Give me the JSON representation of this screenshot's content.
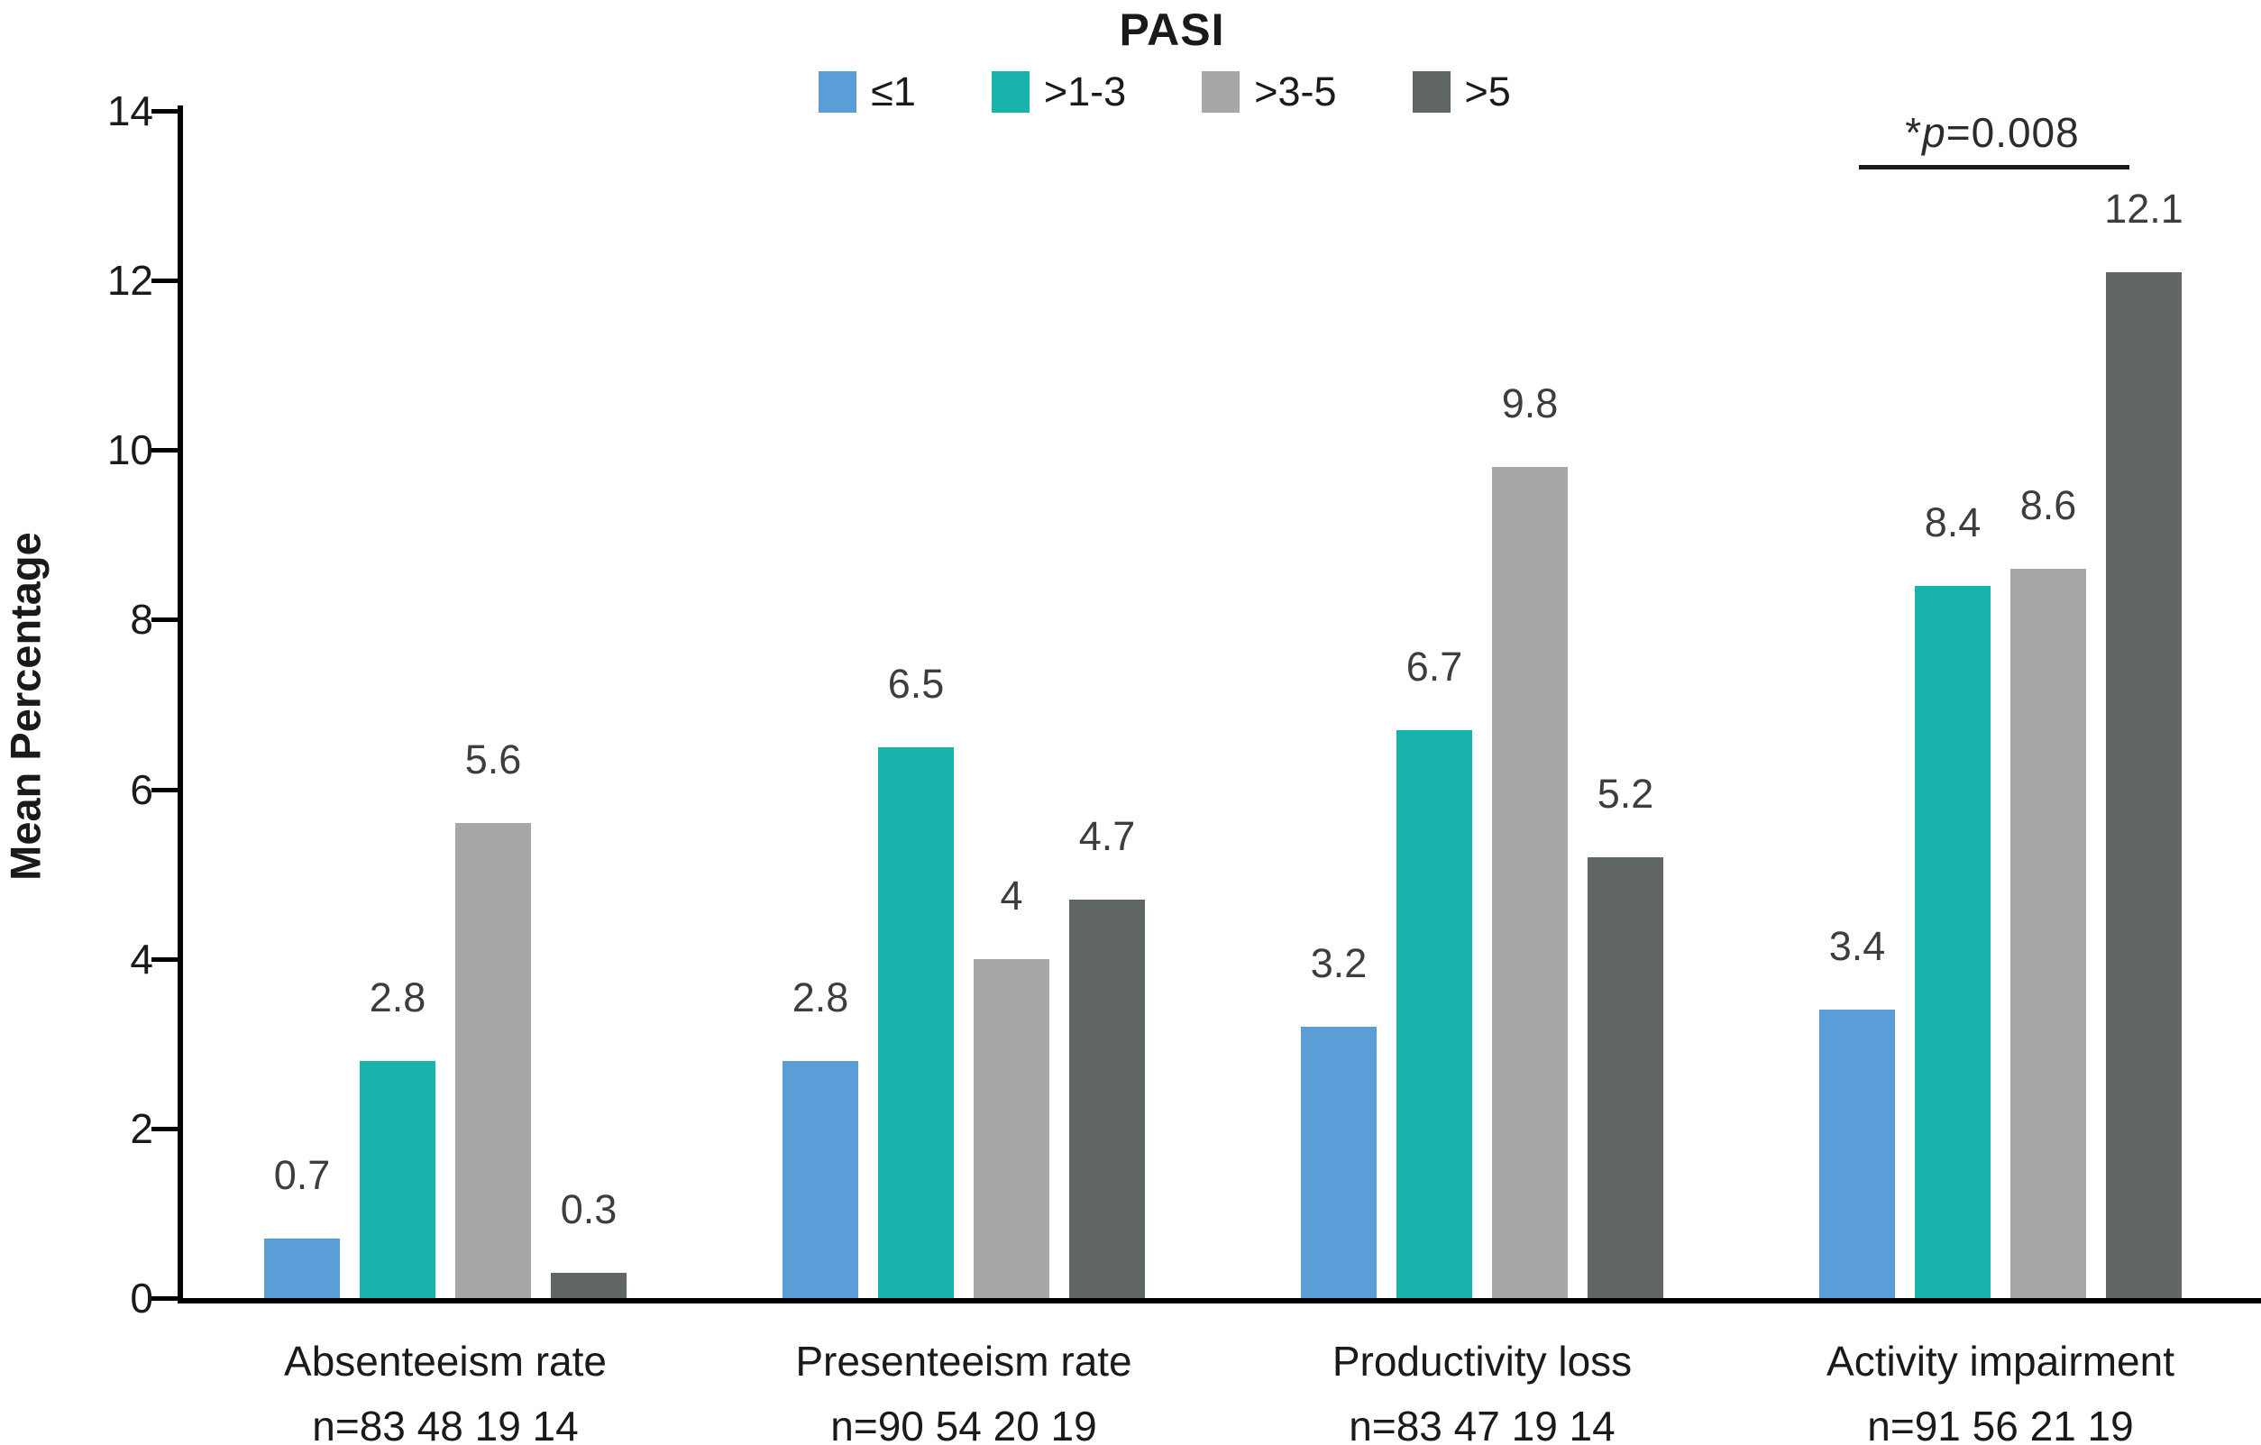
{
  "chart_data": {
    "type": "bar",
    "title": "PASI",
    "ylabel": "Mean Percentage",
    "ylim": [
      0,
      14
    ],
    "ytick_step": 2,
    "grid": false,
    "legend_position": "top-center",
    "categories": [
      "Absenteeism rate",
      "Presenteeism rate",
      "Productivity loss",
      "Activity impairment"
    ],
    "category_n_labels": [
      "n=83 48 19 14",
      "n=90 54 20 19",
      "n=83 47 19 14",
      "n=91 56 21 19"
    ],
    "series": [
      {
        "name": "≤1",
        "color": "#5B9ED7",
        "values": [
          0.7,
          2.8,
          3.2,
          3.4
        ]
      },
      {
        "name": ">1-3",
        "color": "#19B3AE",
        "values": [
          2.8,
          6.5,
          6.7,
          8.4
        ]
      },
      {
        "name": ">3-5",
        "color": "#A5A7A9",
        "values": [
          5.6,
          4.0,
          9.8,
          8.6
        ]
      },
      {
        "name": ">5",
        "color": "#616667",
        "values": [
          0.3,
          4.7,
          5.2,
          12.1
        ]
      }
    ],
    "value_labels": [
      [
        "0.7",
        "2.8",
        "5.6",
        "0.3"
      ],
      [
        "2.8",
        "6.5",
        "4",
        "4.7"
      ],
      [
        "3.2",
        "6.7",
        "9.8",
        "5.2"
      ],
      [
        "3.4",
        "8.4",
        "8.6",
        "12.1"
      ]
    ],
    "annotation": {
      "star": "*",
      "p": "p",
      "rest": "=0.008",
      "applies_to_category": "Activity impairment"
    }
  }
}
